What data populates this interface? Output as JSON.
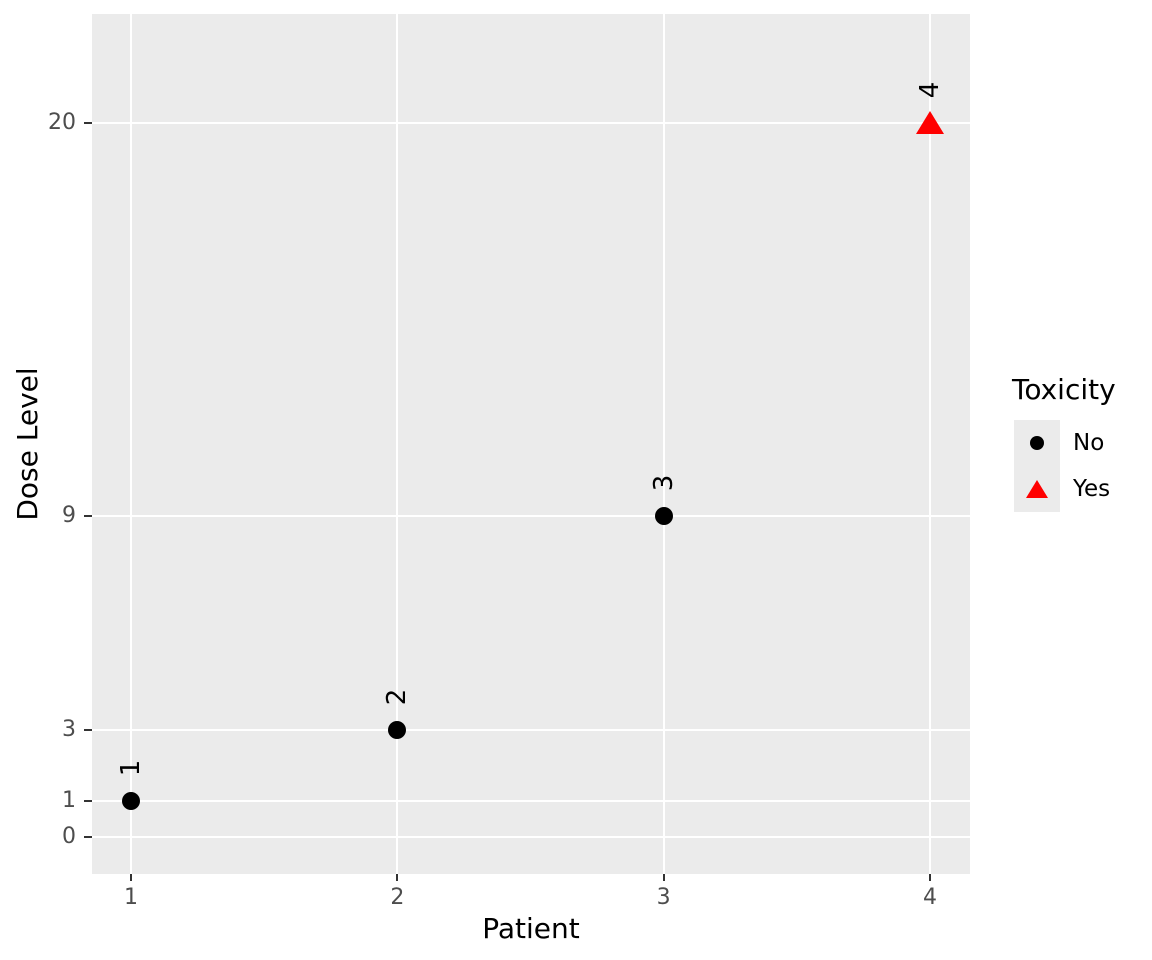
{
  "chart_data": {
    "type": "scatter",
    "title": "",
    "xlabel": "Patient",
    "ylabel": "Dose Level",
    "x_ticks": [
      {
        "value": 1,
        "label": "1"
      },
      {
        "value": 2,
        "label": "2"
      },
      {
        "value": 3,
        "label": "3"
      },
      {
        "value": 4,
        "label": "4"
      }
    ],
    "y_ticks": [
      {
        "value": 0,
        "label": "0"
      },
      {
        "value": 1,
        "label": "1"
      },
      {
        "value": 3,
        "label": "3"
      },
      {
        "value": 9,
        "label": "9"
      },
      {
        "value": 20,
        "label": "20"
      }
    ],
    "xlim": [
      0.85,
      4.15
    ],
    "ylim": [
      -1,
      23
    ],
    "grid": "major-only",
    "points": [
      {
        "patient": 1,
        "dose": 1,
        "toxicity": "No",
        "label": "1",
        "shape": "circle",
        "color": "#000000"
      },
      {
        "patient": 2,
        "dose": 3,
        "toxicity": "No",
        "label": "2",
        "shape": "circle",
        "color": "#000000"
      },
      {
        "patient": 3,
        "dose": 9,
        "toxicity": "No",
        "label": "3",
        "shape": "circle",
        "color": "#000000"
      },
      {
        "patient": 4,
        "dose": 20,
        "toxicity": "Yes",
        "label": "4",
        "shape": "triangle",
        "color": "#FF0000"
      }
    ],
    "legend": {
      "title": "Toxicity",
      "position": "right",
      "entries": [
        {
          "label": "No",
          "shape": "circle",
          "color": "#000000"
        },
        {
          "label": "Yes",
          "shape": "triangle",
          "color": "#FF0000"
        }
      ]
    },
    "colors": {
      "panel_background": "#EBEBEB",
      "gridline": "#FFFFFF",
      "tick_mark": "#333333",
      "tick_label": "#4D4D4D",
      "axis_title": "#000000",
      "point_no": "#000000",
      "point_yes": "#FF0000",
      "figure_background": "#FFFFFF"
    }
  }
}
